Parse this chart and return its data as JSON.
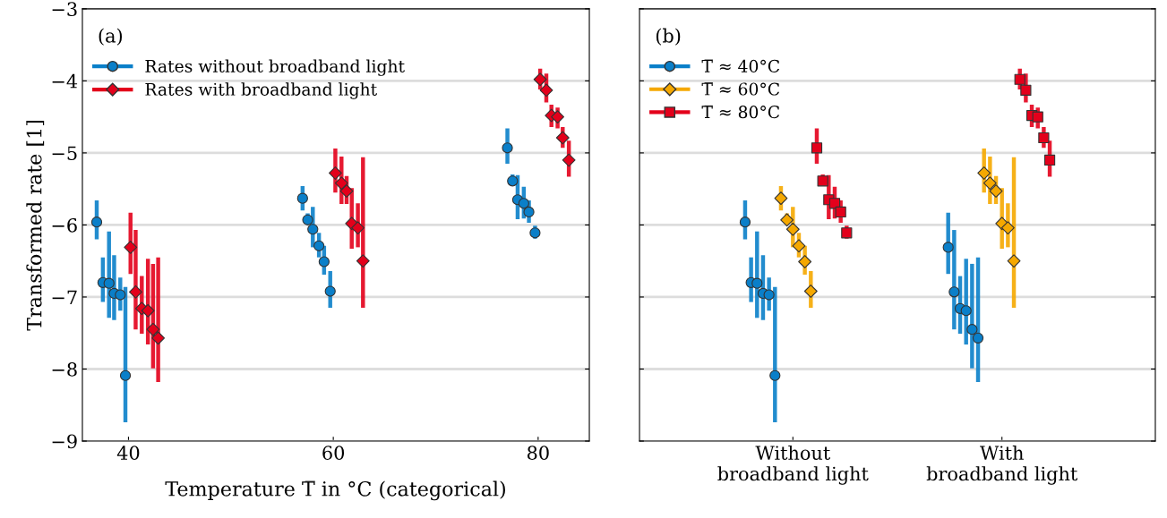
{
  "chart_data": [
    {
      "type": "scatter",
      "xlabel": "Temperature T̅ in °C (categorical)",
      "ylabel": "Transformed rate [1]",
      "annotations": [
        "(a)"
      ],
      "xlim": [
        35.5,
        85
      ],
      "xticks": [
        40,
        60,
        80
      ],
      "ylim": [
        -9,
        -3
      ],
      "yticks": [
        {
          "value": -9,
          "label": "−9"
        },
        {
          "value": -8,
          "label": "−8"
        },
        {
          "value": -7,
          "label": "−7"
        },
        {
          "value": -6,
          "label": "−6"
        },
        {
          "value": -5,
          "label": "−5"
        },
        {
          "value": -4,
          "label": "−4"
        },
        {
          "value": -3,
          "label": "−3"
        }
      ],
      "grid": "y",
      "legend": "top left",
      "series": [
        {
          "name": "Rates without broadband light",
          "color": "#0a7fc9",
          "marker": "circle",
          "x": [
            36.9,
            37.5,
            38.1,
            38.6,
            39.2,
            39.7,
            57.0,
            57.5,
            58.0,
            58.6,
            59.1,
            59.7,
            77.0,
            77.5,
            78.0,
            78.6,
            79.1,
            79.7
          ],
          "values": [
            -5.96,
            -6.8,
            -6.81,
            -6.95,
            -6.97,
            -8.09,
            -5.63,
            -5.93,
            -6.06,
            -6.29,
            -6.51,
            -6.92,
            -4.93,
            -5.39,
            -5.65,
            -5.7,
            -5.82,
            -6.11
          ],
          "errors": [
            [
              -6.2,
              -5.66
            ],
            [
              -7.07,
              -6.45
            ],
            [
              -7.29,
              -6.09
            ],
            [
              -7.32,
              -6.42
            ],
            [
              -7.19,
              -6.73
            ],
            [
              -8.74,
              -6.86
            ],
            [
              -5.8,
              -5.46
            ],
            [
              -5.98,
              -5.84
            ],
            [
              -6.31,
              -5.75
            ],
            [
              -6.45,
              -6.11
            ],
            [
              -6.69,
              -6.29
            ],
            [
              -7.15,
              -6.64
            ],
            [
              -5.15,
              -4.66
            ],
            [
              -5.44,
              -5.3
            ],
            [
              -5.92,
              -5.31
            ],
            [
              -5.91,
              -5.47
            ],
            [
              -5.97,
              -5.66
            ],
            [
              -6.19,
              -6.01
            ]
          ]
        },
        {
          "name": "Rates with broadband light",
          "color": "#e3001b",
          "marker": "diamond",
          "x": [
            40.2,
            40.7,
            41.3,
            41.9,
            42.4,
            42.9,
            60.2,
            60.8,
            61.3,
            61.8,
            62.4,
            62.9,
            80.2,
            80.8,
            81.3,
            81.9,
            82.4,
            83.0
          ],
          "values": [
            -6.31,
            -6.93,
            -7.16,
            -7.19,
            -7.45,
            -7.57,
            -5.28,
            -5.42,
            -5.53,
            -5.98,
            -6.04,
            -6.5,
            -3.98,
            -4.13,
            -4.48,
            -4.5,
            -4.79,
            -5.1
          ],
          "errors": [
            [
              -6.68,
              -5.83
            ],
            [
              -7.45,
              -6.07
            ],
            [
              -7.51,
              -6.71
            ],
            [
              -7.66,
              -6.47
            ],
            [
              -7.99,
              -6.54
            ],
            [
              -8.18,
              -6.45
            ],
            [
              -5.55,
              -4.94
            ],
            [
              -5.71,
              -5.05
            ],
            [
              -5.71,
              -5.32
            ],
            [
              -6.33,
              -5.49
            ],
            [
              -6.31,
              -5.7
            ],
            [
              -7.15,
              -5.06
            ],
            [
              -4.12,
              -3.83
            ],
            [
              -4.3,
              -3.9
            ],
            [
              -4.64,
              -4.33
            ],
            [
              -4.66,
              -4.37
            ],
            [
              -4.93,
              -4.64
            ],
            [
              -5.33,
              -4.83
            ]
          ]
        }
      ]
    },
    {
      "type": "scatter",
      "annotations": [
        "(b)"
      ],
      "categories": [
        null,
        null,
        null,
        null,
        null,
        null,
        null,
        null,
        "Without\nbroadband light",
        null,
        null,
        null,
        null,
        null,
        null,
        null,
        null,
        null,
        null,
        null,
        null,
        null,
        null,
        null,
        null,
        null,
        null,
        null,
        null,
        null,
        null,
        null,
        null,
        null,
        null,
        null,
        null,
        null,
        null,
        null,
        null,
        null,
        null,
        "With\nbroadband light",
        null,
        null,
        null,
        null,
        null,
        null,
        null,
        null
      ],
      "ylim": [
        -9,
        -3
      ],
      "yticks": [
        -9,
        -8,
        -7,
        -6,
        -5,
        -4,
        -3
      ],
      "tick_labels": "x",
      "grid": "y",
      "legend": "top left",
      "series": [
        {
          "name": "T̅ ≈ 40°C",
          "color": "#0a7fc9",
          "marker": "circle",
          "values": [
            -5.96,
            -6.8,
            -6.81,
            -6.95,
            -6.97,
            -8.09,
            null,
            null,
            null,
            null,
            null,
            null,
            null,
            null,
            null,
            null,
            null,
            null,
            null,
            null,
            null,
            null,
            null,
            null,
            null,
            null,
            null,
            null,
            null,
            null,
            null,
            null,
            null,
            null,
            -6.31,
            -6.93,
            -7.16,
            -7.19,
            -7.45,
            -7.57,
            null,
            null,
            null,
            null,
            null,
            null,
            null,
            null,
            null,
            null,
            null,
            null
          ],
          "errors": [
            [
              -6.2,
              -5.66
            ],
            [
              -7.07,
              -6.45
            ],
            [
              -7.29,
              -6.09
            ],
            [
              -7.32,
              -6.42
            ],
            [
              -7.19,
              -6.73
            ],
            [
              -8.74,
              -6.86
            ],
            null,
            null,
            null,
            null,
            null,
            null,
            null,
            null,
            null,
            null,
            null,
            null,
            null,
            null,
            null,
            null,
            null,
            null,
            null,
            null,
            null,
            null,
            null,
            null,
            null,
            null,
            null,
            null,
            [
              -6.68,
              -5.83
            ],
            [
              -7.45,
              -6.07
            ],
            [
              -7.51,
              -6.71
            ],
            [
              -7.66,
              -6.47
            ],
            [
              -7.99,
              -6.54
            ],
            [
              -8.18,
              -6.45
            ],
            null,
            null,
            null,
            null,
            null,
            null,
            null,
            null,
            null,
            null,
            null,
            null
          ]
        },
        {
          "name": "T̅ ≈ 60°C",
          "color": "#f5a800",
          "marker": "diamond",
          "values": [
            null,
            null,
            null,
            null,
            null,
            null,
            -5.63,
            -5.93,
            -6.06,
            -6.29,
            -6.51,
            -6.92,
            null,
            null,
            null,
            null,
            null,
            null,
            null,
            null,
            null,
            null,
            null,
            null,
            null,
            null,
            null,
            null,
            null,
            null,
            null,
            null,
            null,
            null,
            null,
            null,
            null,
            null,
            null,
            null,
            -5.28,
            -5.42,
            -5.53,
            -5.98,
            -6.04,
            -6.5,
            null,
            null,
            null,
            null,
            null,
            null
          ],
          "errors": [
            null,
            null,
            null,
            null,
            null,
            null,
            [
              -5.8,
              -5.46
            ],
            [
              -5.98,
              -5.84
            ],
            [
              -6.31,
              -5.75
            ],
            [
              -6.45,
              -6.11
            ],
            [
              -6.69,
              -6.29
            ],
            [
              -7.15,
              -6.64
            ],
            null,
            null,
            null,
            null,
            null,
            null,
            null,
            null,
            null,
            null,
            null,
            null,
            null,
            null,
            null,
            null,
            null,
            null,
            null,
            null,
            null,
            null,
            null,
            null,
            null,
            null,
            null,
            null,
            [
              -5.55,
              -4.94
            ],
            [
              -5.71,
              -5.05
            ],
            [
              -5.71,
              -5.32
            ],
            [
              -6.33,
              -5.49
            ],
            [
              -6.31,
              -5.7
            ],
            [
              -7.15,
              -5.06
            ],
            null,
            null,
            null,
            null,
            null,
            null
          ]
        },
        {
          "name": "T̅ ≈ 80°C",
          "color": "#e3001b",
          "marker": "square",
          "values": [
            null,
            null,
            null,
            null,
            null,
            null,
            null,
            null,
            null,
            null,
            null,
            null,
            -4.93,
            -5.39,
            -5.65,
            -5.7,
            -5.82,
            -6.11,
            null,
            null,
            null,
            null,
            null,
            null,
            null,
            null,
            null,
            null,
            null,
            null,
            null,
            null,
            null,
            null,
            null,
            null,
            null,
            null,
            null,
            null,
            null,
            null,
            null,
            null,
            null,
            null,
            -3.98,
            -4.13,
            -4.48,
            -4.5,
            -4.79,
            -5.1
          ],
          "errors": [
            null,
            null,
            null,
            null,
            null,
            null,
            null,
            null,
            null,
            null,
            null,
            null,
            [
              -5.15,
              -4.66
            ],
            [
              -5.44,
              -5.3
            ],
            [
              -5.92,
              -5.31
            ],
            [
              -5.91,
              -5.47
            ],
            [
              -5.97,
              -5.66
            ],
            [
              -6.19,
              -6.01
            ],
            null,
            null,
            null,
            null,
            null,
            null,
            null,
            null,
            null,
            null,
            null,
            null,
            null,
            null,
            null,
            null,
            null,
            null,
            null,
            null,
            null,
            null,
            null,
            null,
            null,
            null,
            null,
            null,
            [
              -4.12,
              -3.83
            ],
            [
              -4.3,
              -3.9
            ],
            [
              -4.64,
              -4.33
            ],
            [
              -4.66,
              -4.37
            ],
            [
              -4.93,
              -4.64
            ],
            [
              -5.33,
              -4.83
            ]
          ]
        }
      ]
    }
  ]
}
